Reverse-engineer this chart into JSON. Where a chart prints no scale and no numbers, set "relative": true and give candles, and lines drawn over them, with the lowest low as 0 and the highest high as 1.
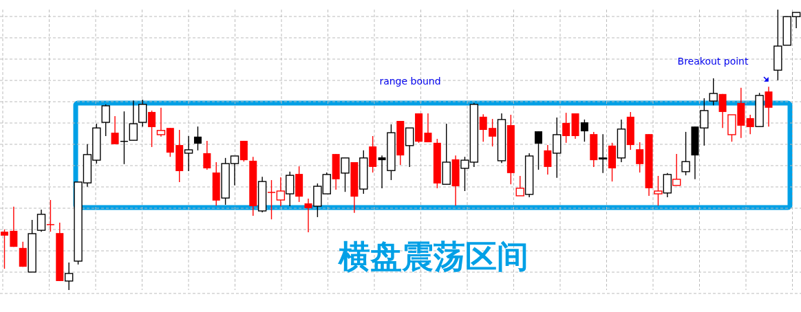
{
  "chart_data": {
    "type": "candlestick",
    "relative": true,
    "grid": true,
    "annotations": [
      "range bound",
      "横盘震荡区间",
      "Breakout point"
    ],
    "categories": [
      null,
      null,
      null,
      null,
      null,
      null,
      null,
      null,
      null,
      null,
      null,
      null,
      null,
      null,
      null,
      null,
      null,
      null,
      null,
      null,
      null,
      null,
      null,
      null,
      null,
      null,
      null,
      null,
      null,
      null,
      null,
      null,
      null,
      null,
      null,
      null,
      null,
      null,
      null,
      null,
      null,
      null,
      null,
      null,
      null,
      null,
      null,
      null,
      null,
      null,
      null,
      null,
      null,
      null,
      null,
      null,
      null,
      null,
      null,
      null,
      null,
      null,
      null,
      null,
      null,
      null,
      null,
      null,
      null,
      null,
      null,
      null,
      null,
      null,
      null,
      null,
      null,
      null,
      null,
      null,
      null,
      null,
      null,
      null,
      null,
      null,
      null
    ],
    "ohlc": [
      [
        0.208,
        0.216,
        0.076,
        0.194
      ],
      [
        0.211,
        0.297,
        0.154,
        0.154
      ],
      [
        0.15,
        0.172,
        0.083,
        0.083
      ],
      [
        0.064,
        0.25,
        0.064,
        0.201
      ],
      [
        0.213,
        0.287,
        0.208,
        0.27
      ],
      [
        0.235,
        0.321,
        0.208,
        0.233
      ],
      [
        0.203,
        0.24,
        0.032,
        0.032
      ],
      [
        0.032,
        0.098,
        0,
        0.059
      ],
      [
        0.103,
        0.385,
        0.091,
        0.385
      ],
      [
        0.382,
        0.52,
        0.368,
        0.483
      ],
      [
        0.463,
        0.593,
        0.451,
        0.578
      ],
      [
        0.598,
        0.662,
        0.549,
        0.657
      ],
      [
        0.561,
        0.62,
        0.52,
        0.52
      ],
      [
        0.532,
        0.637,
        0.449,
        0.529
      ],
      [
        0.534,
        0.676,
        0.534,
        0.593
      ],
      [
        0.598,
        0.679,
        0.583,
        0.662
      ],
      [
        0.635,
        0.64,
        0.51,
        0.581
      ],
      [
        0.554,
        0.65,
        0.547,
        0.569
      ],
      [
        0.578,
        0.578,
        0.475,
        0.49
      ],
      [
        0.517,
        0.571,
        0.385,
        0.424
      ],
      [
        0.488,
        0.549,
        0.424,
        0.5
      ],
      [
        0.547,
        0.583,
        0.498,
        0.522
      ],
      [
        0.488,
        0.532,
        0.429,
        0.434
      ],
      [
        0.419,
        0.456,
        0.301,
        0.319
      ],
      [
        0.328,
        0.471,
        0.304,
        0.451
      ],
      [
        0.451,
        0.478,
        0.373,
        0.478
      ],
      [
        0.532,
        0.532,
        0.458,
        0.463
      ],
      [
        0.461,
        0.475,
        0.265,
        0.299
      ],
      [
        0.282,
        0.404,
        0.277,
        0.387
      ],
      [
        0.35,
        0.392,
        0.252,
        0.348
      ],
      [
        0.321,
        0.402,
        0.299,
        0.353
      ],
      [
        0.343,
        0.422,
        0.299,
        0.409
      ],
      [
        0.414,
        0.441,
        0.314,
        0.333
      ],
      [
        0.309,
        0.326,
        0.206,
        0.292
      ],
      [
        0.299,
        0.38,
        0.26,
        0.37
      ],
      [
        0.343,
        0.419,
        0.343,
        0.412
      ],
      [
        0.485,
        0.485,
        0.358,
        0.395
      ],
      [
        0.417,
        0.471,
        0.35,
        0.471
      ],
      [
        0.456,
        0.456,
        0.275,
        0.333
      ],
      [
        0.36,
        0.498,
        0.343,
        0.471
      ],
      [
        0.512,
        0.549,
        0.419,
        0.439
      ],
      [
        0.473,
        0.48,
        0.363,
        0.463
      ],
      [
        0.426,
        0.591,
        0.392,
        0.561
      ],
      [
        0.603,
        0.603,
        0.446,
        0.48
      ],
      [
        0.515,
        0.578,
        0.439,
        0.578
      ],
      [
        0.63,
        0.63,
        0.525,
        0.529
      ],
      [
        0.561,
        0.63,
        0.527,
        0.527
      ],
      [
        0.525,
        0.539,
        0.363,
        0.38
      ],
      [
        0.377,
        0.593,
        0.377,
        0.456
      ],
      [
        0.466,
        0.48,
        0.301,
        0.37
      ],
      [
        0.434,
        0.475,
        0.353,
        0.463
      ],
      [
        0.456,
        0.667,
        0.439,
        0.662
      ],
      [
        0.618,
        0.627,
        0.529,
        0.571
      ],
      [
        0.578,
        0.61,
        0.512,
        0.547
      ],
      [
        0.461,
        0.63,
        0.453,
        0.608
      ],
      [
        0.588,
        0.625,
        0.377,
        0.417
      ],
      [
        0.336,
        0.407,
        0.336,
        0.363
      ],
      [
        0.341,
        0.488,
        0.331,
        0.478
      ],
      [
        0.566,
        0.566,
        0.429,
        0.522
      ],
      [
        0.498,
        0.517,
        0.412,
        0.439
      ],
      [
        0.488,
        0.615,
        0.4,
        0.554
      ],
      [
        0.596,
        0.632,
        0.525,
        0.549
      ],
      [
        0.63,
        0.63,
        0.539,
        0.549
      ],
      [
        0.598,
        0.608,
        0.529,
        0.566
      ],
      [
        0.556,
        0.564,
        0.439,
        0.463
      ],
      [
        0.471,
        0.556,
        0.417,
        0.471
      ],
      [
        0.515,
        0.525,
        0.387,
        0.434
      ],
      [
        0.471,
        0.608,
        0.456,
        0.574
      ],
      [
        0.618,
        0.635,
        0.5,
        0.517
      ],
      [
        0.502,
        0.527,
        0.419,
        0.449
      ],
      [
        0.556,
        0.556,
        0.336,
        0.363
      ],
      [
        0.343,
        0.407,
        0.301,
        0.353
      ],
      [
        0.346,
        0.417,
        0.331,
        0.412
      ],
      [
        0.373,
        0.485,
        0.373,
        0.395
      ],
      [
        0.422,
        0.564,
        0.409,
        0.458
      ],
      [
        0.583,
        0.583,
        0.395,
        0.48
      ],
      [
        0.578,
        0.684,
        0.515,
        0.64
      ],
      [
        0.674,
        0.755,
        0.659,
        0.701
      ],
      [
        0.699,
        0.699,
        0.578,
        0.635
      ],
      [
        0.554,
        0.625,
        0.529,
        0.625
      ],
      [
        0.667,
        0.721,
        0.542,
        0.586
      ],
      [
        0.613,
        0.625,
        0.556,
        0.581
      ],
      [
        0.583,
        0.703,
        0.583,
        0.694
      ],
      [
        0.708,
        0.725,
        0.583,
        0.65
      ],
      [
        0.784,
        1,
        0.748,
        0.87
      ],
      [
        0.873,
        0.975,
        0.873,
        0.975
      ],
      [
        0.975,
        0.99,
        0.934,
        0.99
      ]
    ],
    "colors": [
      "#ff0000",
      "#ff0000",
      "#ff0000",
      "#000000",
      "#000000",
      "#ff0000",
      "#ff0000",
      "#000000",
      "#000000",
      "#000000",
      "#000000",
      "#000000",
      "#ff0000",
      "#000000",
      "#000000",
      "#000000",
      "#ff0000",
      "#ff0000",
      "#ff0000",
      "#ff0000",
      "#000000",
      "#000000",
      "#ff0000",
      "#ff0000",
      "#000000",
      "#000000",
      "#ff0000",
      "#ff0000",
      "#000000",
      "#ff0000",
      "#ff0000",
      "#000000",
      "#ff0000",
      "#ff0000",
      "#000000",
      "#000000",
      "#ff0000",
      "#000000",
      "#ff0000",
      "#000000",
      "#ff0000",
      "#000000",
      "#000000",
      "#ff0000",
      "#000000",
      "#ff0000",
      "#ff0000",
      "#ff0000",
      "#000000",
      "#ff0000",
      "#000000",
      "#000000",
      "#ff0000",
      "#ff0000",
      "#000000",
      "#ff0000",
      "#ff0000",
      "#000000",
      "#000000",
      "#ff0000",
      "#000000",
      "#ff0000",
      "#ff0000",
      "#000000",
      "#ff0000",
      "#000000",
      "#ff0000",
      "#000000",
      "#ff0000",
      "#ff0000",
      "#ff0000",
      "#ff0000",
      "#000000",
      "#ff0000",
      "#000000",
      "#000000",
      "#000000",
      "#000000",
      "#ff0000",
      "#ff0000",
      "#ff0000",
      "#ff0000",
      "#000000",
      "#ff0000",
      "#000000",
      "#000000",
      "#000000"
    ]
  }
}
